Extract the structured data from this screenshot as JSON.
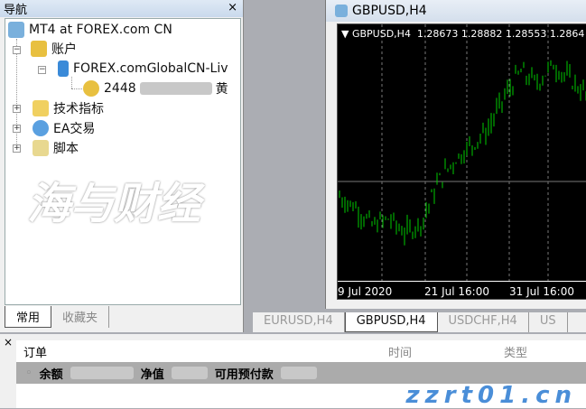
{
  "navigator": {
    "title": "导航",
    "close": "×",
    "root": "MT4 at FOREX.com CN",
    "accounts": "账户",
    "server": "FOREX.comGlobalCN-Liv",
    "account": "2448",
    "account_suffix": "黄",
    "indicators": "技术指标",
    "ea": "EA交易",
    "scripts": "脚本",
    "tabs": [
      "常用",
      "收藏夹"
    ]
  },
  "chart": {
    "window_title": "GBPUSD,H4",
    "info": "GBPUSD,H4  1.28673 1.28882 1.28553 1.2864",
    "bull_color": "#00cc00",
    "bg": "#000000",
    "time_labels": [
      "9 Jul 2020",
      "21 Jul 16:00",
      "31 Jul 16:00"
    ],
    "tabs": [
      "EURUSD,H4",
      "GBPUSD,H4",
      "USDCHF,H4",
      "US"
    ],
    "active_tab": 1
  },
  "chart_data": {
    "type": "candlestick",
    "symbol": "GBPUSD",
    "timeframe": "H4",
    "close_path": [
      1.258,
      1.255,
      1.25,
      1.252,
      1.248,
      1.251,
      1.262,
      1.268,
      1.272,
      1.276,
      1.285,
      1.292,
      1.289,
      1.294,
      1.29,
      1.286
    ]
  },
  "terminal": {
    "close": "×",
    "orders": "订单",
    "time": "时间",
    "type": "类型",
    "balance": "余额",
    "equity": "净值",
    "free_margin": "可用预付款"
  },
  "watermark": {
    "text": "海与财经",
    "url": "zzrt01.cn"
  }
}
